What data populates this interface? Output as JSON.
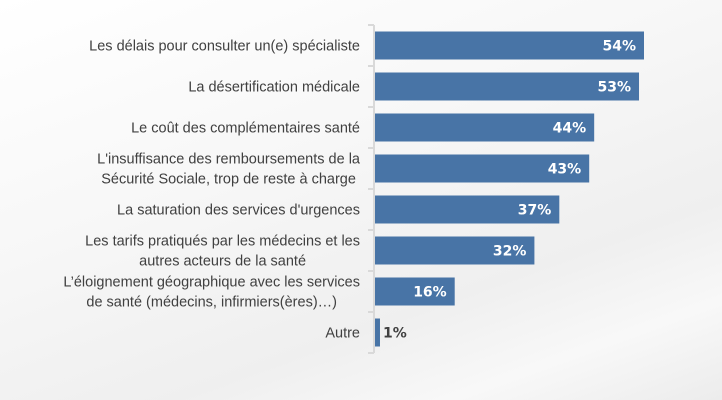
{
  "chart_data": {
    "type": "bar",
    "orientation": "horizontal",
    "title": "",
    "xlabel": "",
    "ylabel": "",
    "xlim": [
      0,
      60
    ],
    "grid": false,
    "legend": "none",
    "bar_color": "#4874A6",
    "value_label_color_inside": "#ffffff",
    "value_label_color_outside": "#404040",
    "categories": [
      [
        "Les délais pour consulter un(e) spécialiste"
      ],
      [
        "La désertification médicale"
      ],
      [
        "Le coût des complémentaires santé"
      ],
      [
        "L'insuffisance des remboursements de la",
        "Sécurité Sociale, trop de reste à charge"
      ],
      [
        "La saturation des services d'urgences"
      ],
      [
        "Les tarifs pratiqués par les médecins et les",
        "autres acteurs de la santé"
      ],
      [
        "L’éloignement géographique avec les services",
        "de santé (médecins, infirmiers(ères)…)"
      ],
      [
        "Autre"
      ]
    ],
    "values": [
      54,
      53,
      44,
      43,
      37,
      32,
      16,
      1
    ],
    "value_labels": [
      "54%",
      "53%",
      "44%",
      "43%",
      "37%",
      "32%",
      "16%",
      "1%"
    ]
  }
}
